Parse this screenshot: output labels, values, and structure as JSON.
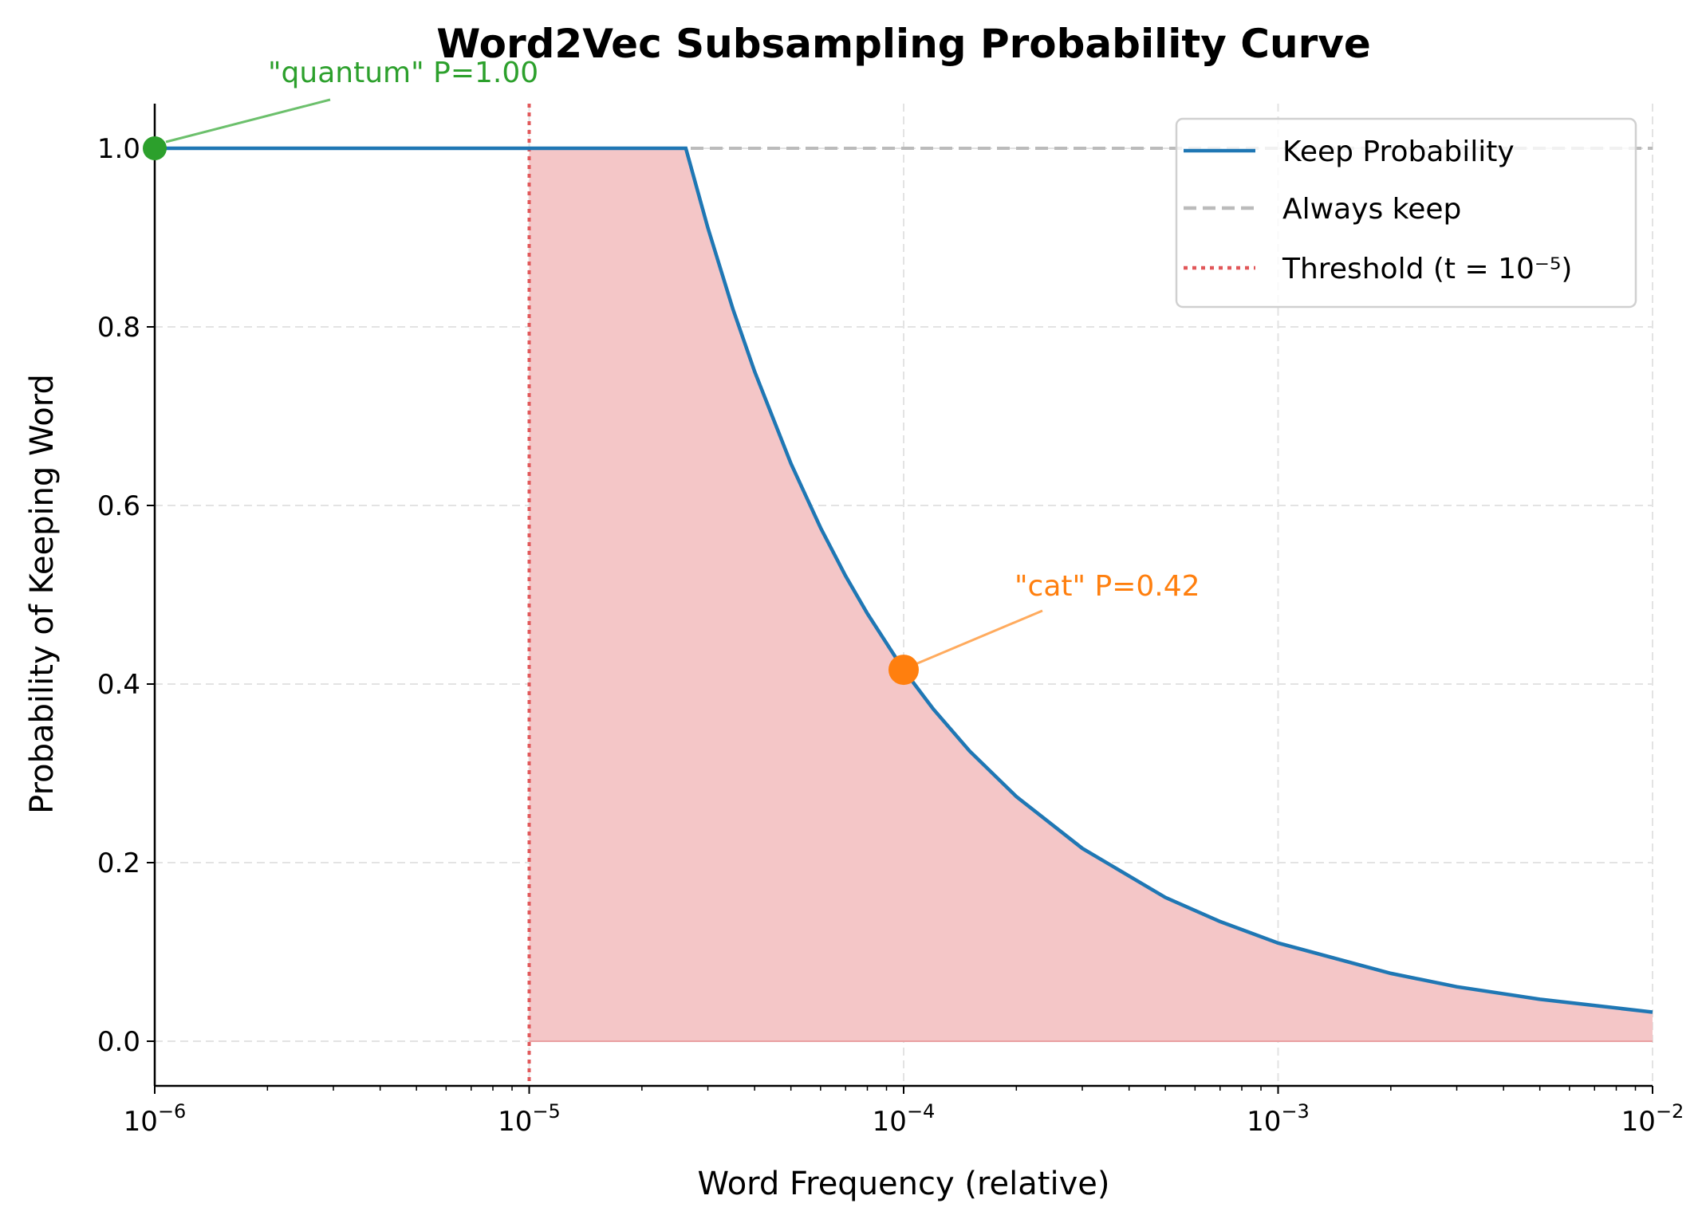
{
  "chart_data": {
    "type": "line",
    "title": "Word2Vec Subsampling Probability Curve",
    "xlabel": "Word Frequency (relative)",
    "ylabel": "Probability of Keeping Word",
    "xscale": "log",
    "xlim": [
      1e-06,
      0.01
    ],
    "ylim": [
      -0.05,
      1.05
    ],
    "grid": true,
    "legend_position": "top-right",
    "x_ticks": [
      {
        "base": "10",
        "exp": "−6",
        "value": 1e-06
      },
      {
        "base": "10",
        "exp": "−5",
        "value": 1e-05
      },
      {
        "base": "10",
        "exp": "−4",
        "value": 0.0001
      },
      {
        "base": "10",
        "exp": "−3",
        "value": 0.001
      },
      {
        "base": "10",
        "exp": "−2",
        "value": 0.01
      }
    ],
    "y_ticks": [
      "0.0",
      "0.2",
      "0.4",
      "0.6",
      "0.8",
      "1.0"
    ],
    "series": [
      {
        "name": "Keep Probability",
        "color": "#1f77b4",
        "style": "solid",
        "x": [
          1e-06,
          1e-05,
          2e-05,
          2.62e-05,
          3e-05,
          3.5e-05,
          4e-05,
          5e-05,
          6e-05,
          7e-05,
          8e-05,
          0.0001,
          0.00012,
          0.00015,
          0.0002,
          0.0003,
          0.0005,
          0.0007,
          0.001,
          0.002,
          0.003,
          0.005,
          0.01
        ],
        "y": [
          1,
          1,
          1,
          1,
          0.911,
          0.82,
          0.75,
          0.647,
          0.575,
          0.521,
          0.479,
          0.416,
          0.372,
          0.325,
          0.274,
          0.216,
          0.161,
          0.134,
          0.11,
          0.076,
          0.061,
          0.047,
          0.0326
        ]
      },
      {
        "name": "Always keep",
        "color": "#bbbbbb",
        "style": "dashed",
        "y_constant": 1.0
      },
      {
        "name": "Threshold (t = 10⁻⁵)",
        "color": "#e15759",
        "style": "dotted",
        "x_constant": 1e-05
      }
    ],
    "fill": {
      "color": "#f4c6c7",
      "x_from": 1e-05,
      "x_to": 0.01
    },
    "annotations": [
      {
        "text": "\"quantum\" P=1.00",
        "x": 1e-06,
        "y": 1.0,
        "color": "#2ca02c",
        "arrow_color": "#6cc06c"
      },
      {
        "text": "\"cat\" P=0.42",
        "x": 0.0001,
        "y": 0.416,
        "color": "#ff7f0e",
        "arrow_color": "#ffab5e"
      }
    ]
  }
}
